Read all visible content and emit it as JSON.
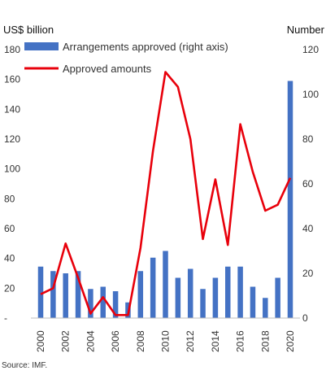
{
  "chart_data": {
    "type": "bar+line",
    "left_unit": "US$ billion",
    "right_unit": "Number",
    "source": "Source: IMF.",
    "x": [
      "2000",
      "2001",
      "2002",
      "2003",
      "2004",
      "2005",
      "2006",
      "2007",
      "2008",
      "2009",
      "2010",
      "2011",
      "2012",
      "2013",
      "2014",
      "2015",
      "2016",
      "2017",
      "2018",
      "2019",
      "2020"
    ],
    "x_tick_labels": [
      "2000",
      "2002",
      "2004",
      "2006",
      "2008",
      "2010",
      "2012",
      "2014",
      "2016",
      "2018",
      "2020"
    ],
    "left_ticks": [
      "-",
      "20",
      "40",
      "60",
      "80",
      "100",
      "120",
      "140",
      "160",
      "180"
    ],
    "right_ticks": [
      "0",
      "20",
      "40",
      "60",
      "80",
      "100",
      "120"
    ],
    "ylim_left": [
      0,
      180
    ],
    "ylim_right": [
      0,
      120
    ],
    "series": [
      {
        "name": "Arrangements approved (right axis)",
        "type": "bar",
        "axis": "right",
        "color": "#4472C4",
        "values": [
          23,
          21,
          20,
          21,
          13,
          14,
          12,
          7,
          21,
          27,
          30,
          18,
          22,
          13,
          18,
          23,
          23,
          14,
          9,
          18,
          106
        ]
      },
      {
        "name": "Approved amounts",
        "type": "line",
        "axis": "left",
        "color": "#E8000B",
        "values": [
          16,
          20,
          50,
          27,
          3,
          14,
          2,
          2,
          47,
          112,
          165,
          155,
          120,
          53,
          93,
          49,
          130,
          98,
          72,
          76,
          94
        ]
      }
    ],
    "legend_position": "top-left",
    "grid": false
  }
}
